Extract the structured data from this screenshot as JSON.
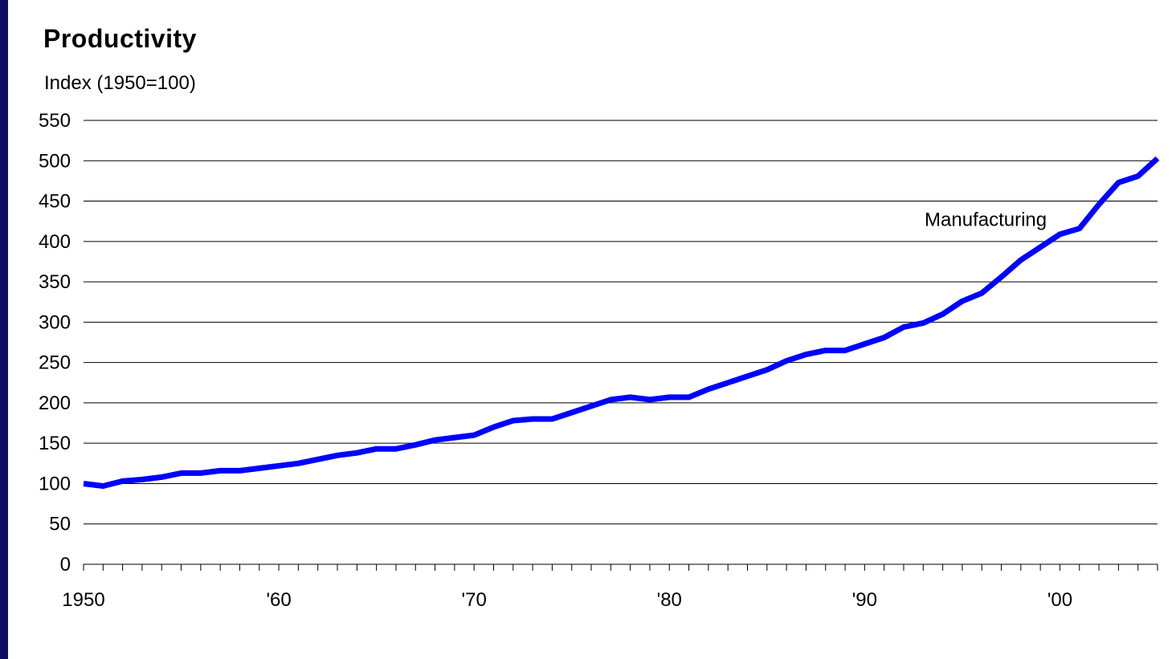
{
  "chart_data": {
    "type": "line",
    "title": "Productivity",
    "ylabel": "Index (1950=100)",
    "xlabel": "",
    "ylim": [
      0,
      550
    ],
    "xlim": [
      1950,
      2005
    ],
    "y_ticks": [
      0,
      50,
      100,
      150,
      200,
      250,
      300,
      350,
      400,
      450,
      500,
      550
    ],
    "x_tick_labels": [
      {
        "x": 1950,
        "label": "1950"
      },
      {
        "x": 1960,
        "label": "'60"
      },
      {
        "x": 1970,
        "label": "'70"
      },
      {
        "x": 1980,
        "label": "'80"
      },
      {
        "x": 1990,
        "label": "'90"
      },
      {
        "x": 2000,
        "label": "'00"
      }
    ],
    "grid": "horizontal",
    "series": [
      {
        "name": "Manufacturing",
        "color": "#0000ff",
        "x": [
          1950,
          1951,
          1952,
          1953,
          1954,
          1955,
          1956,
          1957,
          1958,
          1959,
          1960,
          1961,
          1962,
          1963,
          1964,
          1965,
          1966,
          1967,
          1968,
          1969,
          1970,
          1971,
          1972,
          1973,
          1974,
          1975,
          1976,
          1977,
          1978,
          1979,
          1980,
          1981,
          1982,
          1983,
          1984,
          1985,
          1986,
          1987,
          1988,
          1989,
          1990,
          1991,
          1992,
          1993,
          1994,
          1995,
          1996,
          1997,
          1998,
          1999,
          2000,
          2001,
          2002,
          2003,
          2004,
          2005
        ],
        "values": [
          100,
          97,
          103,
          105,
          108,
          113,
          113,
          116,
          116,
          119,
          122,
          125,
          130,
          135,
          138,
          143,
          143,
          148,
          154,
          157,
          160,
          170,
          178,
          180,
          180,
          188,
          196,
          204,
          207,
          204,
          207,
          207,
          217,
          225,
          233,
          241,
          252,
          260,
          265,
          265,
          273,
          281,
          294,
          299,
          310,
          326,
          336,
          356,
          377,
          393,
          409,
          416,
          446,
          473,
          481,
          503
        ]
      }
    ],
    "annotations": [
      {
        "text": "Manufacturing",
        "x": 1996.2,
        "y": 419
      }
    ]
  }
}
